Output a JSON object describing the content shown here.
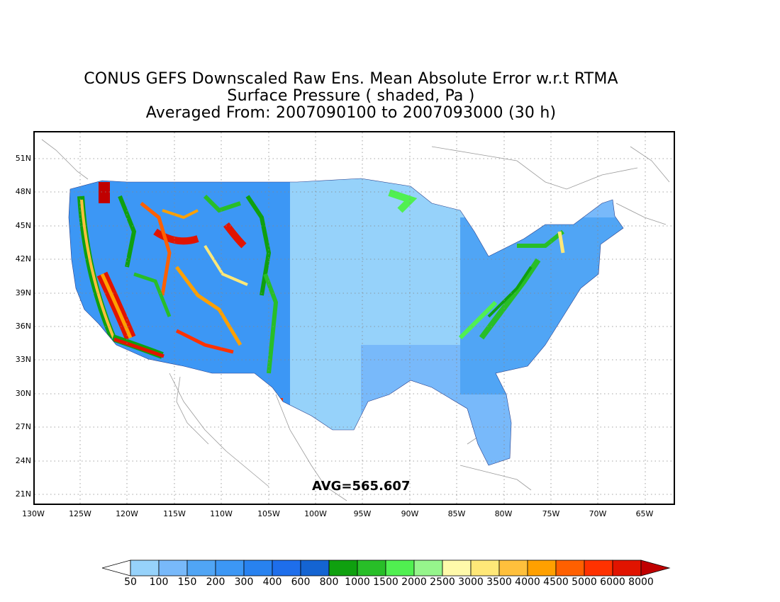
{
  "title": {
    "line1": "CONUS GEFS Downscaled Raw Ens. Mean Absolute Error w.r.t RTMA",
    "line2": "Surface Pressure ( shaded, Pa )",
    "line3": "Averaged From: 2007090100 to 2007093000 (30 h)"
  },
  "annotation": {
    "avg": "AVG=565.607"
  },
  "map": {
    "region": "CONUS",
    "lon_range": [
      -130,
      -62
    ],
    "lat_range": [
      19.5,
      52.5
    ],
    "lat_ticks": [
      "51N",
      "48N",
      "45N",
      "42N",
      "39N",
      "36N",
      "33N",
      "30N",
      "27N",
      "24N",
      "21N"
    ],
    "lon_ticks": [
      "130W",
      "125W",
      "120W",
      "115W",
      "110W",
      "105W",
      "100W",
      "95W",
      "90W",
      "85W",
      "80W",
      "75W",
      "70W",
      "65W"
    ],
    "grid": "dotted"
  },
  "colorbar": {
    "labels": [
      "50",
      "100",
      "150",
      "200",
      "300",
      "400",
      "600",
      "800",
      "1000",
      "1500",
      "2000",
      "2500",
      "3000",
      "3500",
      "4000",
      "4500",
      "5000",
      "6000",
      "8000"
    ],
    "colors": [
      "#ffffff",
      "#96d2fa",
      "#78b9fa",
      "#50a5f5",
      "#3c97f5",
      "#2882f0",
      "#1e6eeb",
      "#1464d2",
      "#0fa00f",
      "#28be28",
      "#50f050",
      "#96f58c",
      "#fffaaa",
      "#ffe878",
      "#ffc03c",
      "#ffa000",
      "#ff6000",
      "#ff3200",
      "#e11400",
      "#c00000"
    ]
  }
}
